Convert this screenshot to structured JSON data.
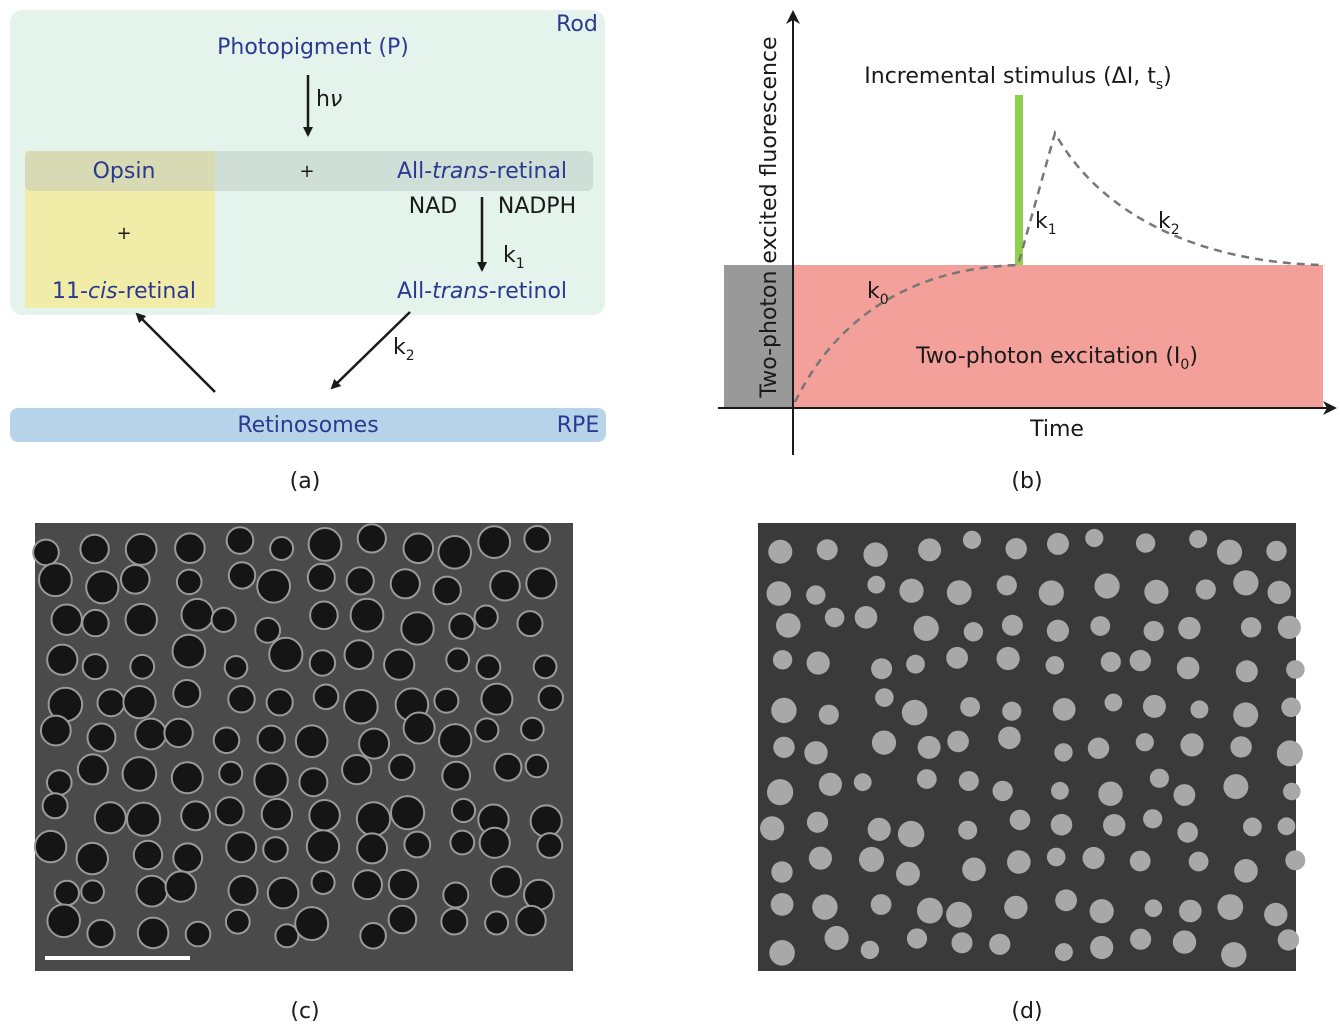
{
  "panel_a": {
    "rod_label": "Rod",
    "photopigment": "Photopigment (P)",
    "hv": [
      "h",
      "ν"
    ],
    "opsin": "Opsin",
    "plus1": "+",
    "all_trans_retinal": [
      "All-",
      "trans",
      "-retinal"
    ],
    "nad": "NAD",
    "nadph": "NADPH",
    "k1": [
      "k",
      "1"
    ],
    "plus2": "+",
    "cis_retinal": [
      "11-",
      "cis",
      "-retinal"
    ],
    "all_trans_retinol": [
      "All-",
      "trans",
      "-retinol"
    ],
    "k2": [
      "k",
      "2"
    ],
    "retinosomes": "Retinosomes",
    "rpe": "RPE",
    "caption": "(a)"
  },
  "panel_b": {
    "y_axis_label": "Two-photon excited fluorescence",
    "x_axis_label": "Time",
    "stimulus": [
      "Incremental stimulus (ΔI, t",
      "s",
      ")"
    ],
    "excitation": [
      "Two-photon excitation (I",
      "0",
      ")"
    ],
    "k0": [
      "k",
      "0"
    ],
    "k1": [
      "k",
      "1"
    ],
    "k2": [
      "k",
      "2"
    ],
    "caption": "(b)"
  },
  "panel_c": {
    "caption": "(c)"
  },
  "panel_d": {
    "caption": "(d)"
  }
}
